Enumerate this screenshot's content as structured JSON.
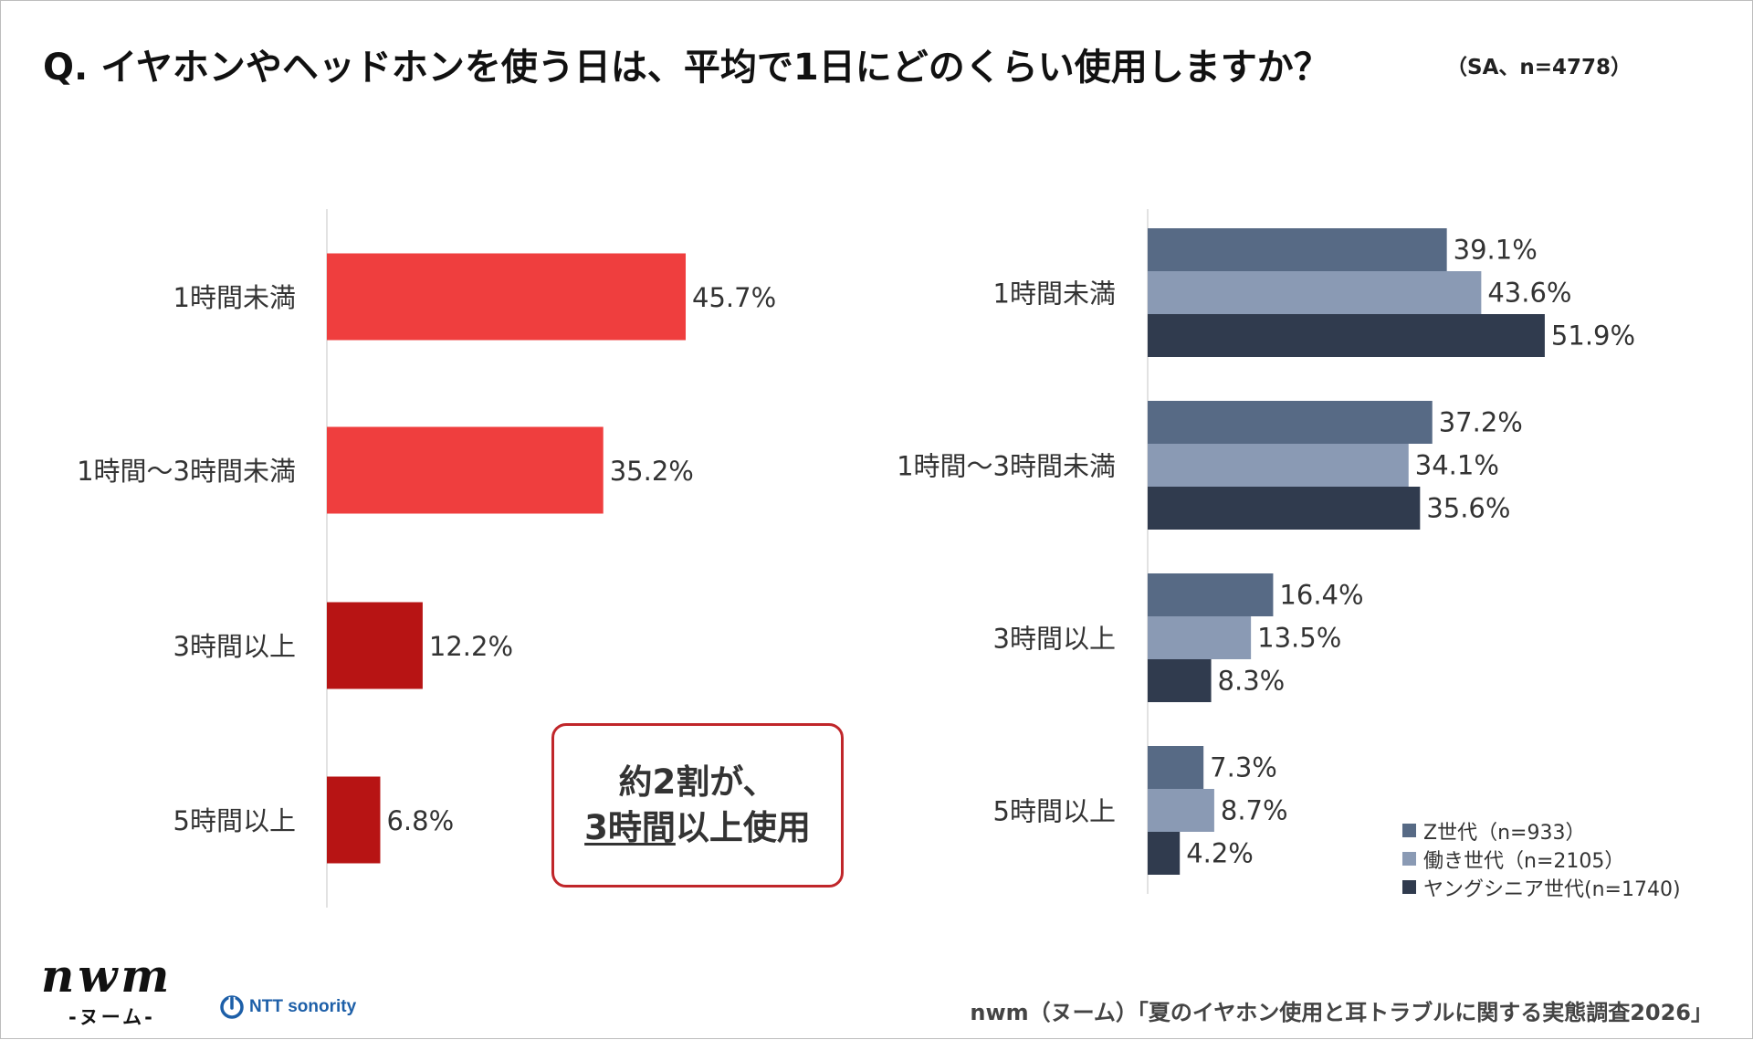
{
  "title": "Q. イヤホンやヘッドホンを使う日は、平均で1日にどのくらい使用しますか？",
  "sample_note": "（SA、n=4778）",
  "callout": {
    "line1": "約2割が、",
    "line2_underlined": "3時間",
    "line2_rest": "以上使用"
  },
  "footer": "nwm（ヌーム）「夏のイヤホン使用と耳トラブルに関する実態調査2026」",
  "brand": {
    "logo_text": "nwm",
    "logo_sub": "-ヌーム-",
    "partner": "NTT sonority"
  },
  "colors": {
    "total_main": "#ef3e3e",
    "total_dark": "#b71414",
    "gen_z": "#576a85",
    "working": "#8a9ab4",
    "young_senior": "#303b4e",
    "callout_border": "#c0262a"
  },
  "chart_data": [
    {
      "type": "bar",
      "orientation": "horizontal",
      "categories": [
        "1時間未満",
        "1時間～3時間未満",
        "3時間以上",
        "5時間以上"
      ],
      "values": [
        45.7,
        35.2,
        12.2,
        6.8
      ],
      "value_labels": [
        "45.7%",
        "35.2%",
        "12.2%",
        "6.8%"
      ],
      "bar_colors": [
        "#ef3e3e",
        "#ef3e3e",
        "#b71414",
        "#b71414"
      ],
      "unit": "%",
      "xlim": [
        0,
        100
      ],
      "grid": false
    },
    {
      "type": "bar",
      "orientation": "horizontal",
      "categories": [
        "1時間未満",
        "1時間～3時間未満",
        "3時間以上",
        "5時間以上"
      ],
      "series": [
        {
          "name": "Z世代（n=933）",
          "values": [
            39.1,
            37.2,
            16.4,
            7.3
          ],
          "labels": [
            "39.1%",
            "37.2%",
            "16.4%",
            "7.3%"
          ],
          "color": "#576a85"
        },
        {
          "name": "働き世代（n=2105）",
          "values": [
            43.6,
            34.1,
            13.5,
            8.7
          ],
          "labels": [
            "43.6%",
            "34.1%",
            "13.5%",
            "8.7%"
          ],
          "color": "#8a9ab4"
        },
        {
          "name": "ヤングシニア世代(n=1740)",
          "values": [
            51.9,
            35.6,
            8.3,
            4.2
          ],
          "labels": [
            "51.9%",
            "35.6%",
            "8.3%",
            "4.2%"
          ],
          "color": "#303b4e"
        }
      ],
      "unit": "%",
      "xlim": [
        0,
        100
      ],
      "legend_position": "bottom-right",
      "grid": false
    }
  ]
}
